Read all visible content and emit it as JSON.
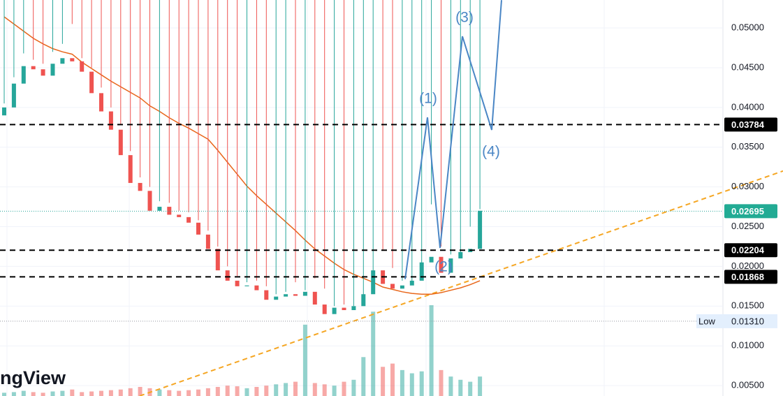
{
  "chart_data": {
    "type": "candlestick",
    "watermark": "ngView",
    "ylim": [
      0.00369,
      0.05352
    ],
    "yticks": [
      {
        "value": 0.005,
        "label": "0.00500"
      },
      {
        "value": 0.01,
        "label": "0.01000"
      },
      {
        "value": 0.015,
        "label": "0.01500"
      },
      {
        "value": 0.02,
        "label": "0.02000"
      },
      {
        "value": 0.025,
        "label": "0.02500"
      },
      {
        "value": 0.03,
        "label": "0.03000"
      },
      {
        "value": 0.035,
        "label": "0.03500"
      },
      {
        "value": 0.04,
        "label": "0.04000"
      },
      {
        "value": 0.045,
        "label": "0.04500"
      },
      {
        "value": 0.05,
        "label": "0.05000"
      }
    ],
    "grid": true,
    "up_color": "#26a69a",
    "down_color": "#ef5350",
    "ma_color": "#e8661a",
    "trend_color": "#f5a623",
    "wave_color": "#4a86c5",
    "open": [
      0.039,
      0.04,
      0.043,
      0.0452,
      0.0448,
      0.044,
      0.0455,
      0.0462,
      0.0458,
      0.0445,
      0.0418,
      0.0395,
      0.0372,
      0.034,
      0.0305,
      0.0295,
      0.027,
      0.0275,
      0.0265,
      0.0262,
      0.0255,
      0.024,
      0.0222,
      0.0195,
      0.0182,
      0.0175,
      0.0176,
      0.017,
      0.0158,
      0.0162,
      0.0165,
      0.0163,
      0.0168,
      0.0152,
      0.014,
      0.0148,
      0.0145,
      0.015,
      0.0165,
      0.0195,
      0.0178,
      0.0172,
      0.0176,
      0.0182,
      0.0205,
      0.0212,
      0.0192,
      0.021,
      0.0218,
      0.0222
    ],
    "high": [
      0.0405,
      0.0438,
      0.0468,
      0.046,
      0.0455,
      0.047,
      0.048,
      0.0505,
      0.0462,
      0.045,
      0.0425,
      0.04,
      0.0378,
      0.0345,
      0.0312,
      0.03,
      0.0282,
      0.028,
      0.027,
      0.0268,
      0.0258,
      0.0245,
      0.0225,
      0.02,
      0.0188,
      0.018,
      0.0182,
      0.0175,
      0.0165,
      0.0168,
      0.018,
      0.017,
      0.0185,
      0.0172,
      0.015,
      0.0152,
      0.015,
      0.0155,
      0.017,
      0.022,
      0.0198,
      0.0182,
      0.018,
      0.019,
      0.0278,
      0.0225,
      0.0215,
      0.0215,
      0.025,
      0.0272
    ],
    "low": {
      "title": "Low",
      "value": 0.0131,
      "label": "0.01310"
    },
    "close": [
      0.04,
      0.043,
      0.0452,
      0.0448,
      0.044,
      0.0455,
      0.0462,
      0.0458,
      0.0445,
      0.0418,
      0.0395,
      0.0372,
      0.034,
      0.0305,
      0.0295,
      0.027,
      0.0275,
      0.0265,
      0.0262,
      0.0255,
      0.024,
      0.0222,
      0.0195,
      0.0182,
      0.0175,
      0.0176,
      0.017,
      0.0158,
      0.0162,
      0.0165,
      0.0163,
      0.0168,
      0.0152,
      0.014,
      0.0148,
      0.0145,
      0.015,
      0.0165,
      0.0195,
      0.0178,
      0.0172,
      0.0176,
      0.0182,
      0.0205,
      0.0212,
      0.0192,
      0.021,
      0.0218,
      0.0222,
      0.027
    ],
    "volume": [
      5,
      6,
      8,
      6,
      5,
      7,
      8,
      10,
      6,
      7,
      8,
      9,
      10,
      12,
      14,
      12,
      10,
      9,
      8,
      9,
      10,
      12,
      14,
      16,
      15,
      12,
      14,
      16,
      18,
      20,
      22,
      110,
      20,
      18,
      16,
      22,
      25,
      60,
      130,
      45,
      50,
      40,
      35,
      38,
      140,
      40,
      30,
      25,
      22,
      30
    ],
    "ma": [
      0.0514,
      0.0505,
      0.0496,
      0.0487,
      0.048,
      0.0474,
      0.047,
      0.0467,
      0.0457,
      0.0449,
      0.0441,
      0.0433,
      0.0426,
      0.0419,
      0.0412,
      0.0402,
      0.0395,
      0.0387,
      0.038,
      0.0374,
      0.0367,
      0.036,
      0.0346,
      0.0331,
      0.0316,
      0.0301,
      0.0289,
      0.0278,
      0.0267,
      0.0256,
      0.0245,
      0.0233,
      0.0222,
      0.0213,
      0.0204,
      0.0196,
      0.019,
      0.0185,
      0.018,
      0.0174,
      0.0171,
      0.0168,
      0.0166,
      0.0165,
      0.0165,
      0.0167,
      0.017,
      0.0173,
      0.0177,
      0.0182
    ],
    "trendline": [
      0.0037,
      0.032
    ],
    "wave": [
      0.0184,
      0.03875,
      0.02232,
      0.04895,
      0.03717,
      0.0535
    ],
    "wave_labels": [
      "(1)",
      "(2)",
      "(3)",
      "(4)"
    ],
    "levels": [
      0.03784,
      0.02204,
      0.01868
    ],
    "last_price": 0.02695
  }
}
